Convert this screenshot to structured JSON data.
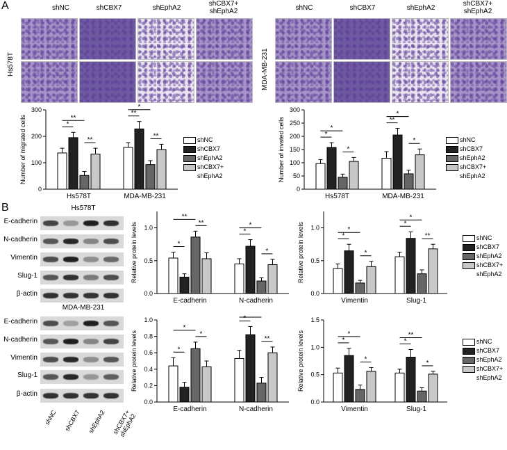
{
  "panel_a": {
    "letter": "A",
    "groups": [
      "shNC",
      "shCBX7",
      "shEphA2",
      "shCBX7+\nshEphA2"
    ],
    "cell_lines": [
      "Hs578T",
      "MDA-MB-231"
    ]
  },
  "panel_b": {
    "letter": "B",
    "blot_titles": [
      "Hs578T",
      "MDA-MB-231"
    ],
    "proteins": [
      "E-cadherin",
      "N-cadherin",
      "Vimentin",
      "Slug-1",
      "β-actin"
    ],
    "lanes": [
      "shNC",
      "shCBX7",
      "shEphA2",
      "shCBX7+\nshEphA2"
    ]
  },
  "legend": {
    "items": [
      {
        "label": "shNC",
        "color": "#ffffff"
      },
      {
        "label": "shCBX7",
        "color": "#222222"
      },
      {
        "label": "shEphA2",
        "color": "#666666"
      },
      {
        "label": "shCBX7+\nshEphA2",
        "color": "#c8c8c8"
      }
    ]
  },
  "chart_data": [
    {
      "type": "bar",
      "ylabel": "Number of migrated cells",
      "ylim": [
        0,
        300
      ],
      "yticks": [
        0,
        100,
        200,
        300
      ],
      "categories": [
        "Hs578T",
        "MDA-MB-231"
      ],
      "series": [
        {
          "name": "shNC",
          "values": [
            137,
            158
          ],
          "err": [
            18,
            18
          ]
        },
        {
          "name": "shCBX7",
          "values": [
            195,
            228
          ],
          "err": [
            20,
            28
          ]
        },
        {
          "name": "shEphA2",
          "values": [
            52,
            93
          ],
          "err": [
            15,
            15
          ]
        },
        {
          "name": "shCBX7+\nshEphA2",
          "values": [
            133,
            150
          ],
          "err": [
            22,
            20
          ]
        }
      ],
      "significance": [
        {
          "cat": 0,
          "from": 0,
          "to": 1,
          "label": "*"
        },
        {
          "cat": 0,
          "from": 0,
          "to": 2,
          "label": "**"
        },
        {
          "cat": 0,
          "from": 2,
          "to": 3,
          "label": "**"
        },
        {
          "cat": 1,
          "from": 0,
          "to": 1,
          "label": "**"
        },
        {
          "cat": 1,
          "from": 0,
          "to": 2,
          "label": "*"
        },
        {
          "cat": 1,
          "from": 2,
          "to": 3,
          "label": "**"
        }
      ]
    },
    {
      "type": "bar",
      "ylabel": "Number of invated cells",
      "ylim": [
        0,
        300
      ],
      "yticks": [
        0,
        50,
        100,
        150,
        200,
        250,
        300
      ],
      "categories": [
        "Hs578T",
        "MDA-MB-231"
      ],
      "series": [
        {
          "name": "shNC",
          "values": [
            97,
            117
          ],
          "err": [
            15,
            25
          ]
        },
        {
          "name": "shCBX7",
          "values": [
            158,
            205
          ],
          "err": [
            18,
            25
          ]
        },
        {
          "name": "shEphA2",
          "values": [
            45,
            58
          ],
          "err": [
            12,
            14
          ]
        },
        {
          "name": "shCBX7+\nshEphA2",
          "values": [
            105,
            130
          ],
          "err": [
            15,
            22
          ]
        }
      ],
      "significance": [
        {
          "cat": 0,
          "from": 0,
          "to": 1,
          "label": "*"
        },
        {
          "cat": 0,
          "from": 0,
          "to": 2,
          "label": "*"
        },
        {
          "cat": 0,
          "from": 2,
          "to": 3,
          "label": "*"
        },
        {
          "cat": 1,
          "from": 0,
          "to": 1,
          "label": "**"
        },
        {
          "cat": 1,
          "from": 0,
          "to": 2,
          "label": "*"
        },
        {
          "cat": 1,
          "from": 2,
          "to": 3,
          "label": "*"
        }
      ]
    },
    {
      "type": "bar",
      "ylabel": "Relative protein levels",
      "ylim": [
        0,
        1.25
      ],
      "yticks": [
        0.0,
        0.5,
        1.0
      ],
      "categories": [
        "E-cadherin",
        "N-cadherin"
      ],
      "series": [
        {
          "name": "shNC",
          "values": [
            0.54,
            0.45
          ],
          "err": [
            0.09,
            0.08
          ]
        },
        {
          "name": "shCBX7",
          "values": [
            0.25,
            0.72
          ],
          "err": [
            0.05,
            0.1
          ]
        },
        {
          "name": "shEphA2",
          "values": [
            0.86,
            0.19
          ],
          "err": [
            0.09,
            0.05
          ]
        },
        {
          "name": "shCBX7+\nshEphA2",
          "values": [
            0.53,
            0.44
          ],
          "err": [
            0.09,
            0.08
          ]
        }
      ],
      "significance": [
        {
          "cat": 0,
          "from": 0,
          "to": 1,
          "label": "*"
        },
        {
          "cat": 0,
          "from": 0,
          "to": 2,
          "label": "**"
        },
        {
          "cat": 0,
          "from": 2,
          "to": 3,
          "label": "**"
        },
        {
          "cat": 1,
          "from": 0,
          "to": 1,
          "label": "*"
        },
        {
          "cat": 1,
          "from": 0,
          "to": 2,
          "label": "*"
        },
        {
          "cat": 1,
          "from": 2,
          "to": 3,
          "label": "*"
        }
      ]
    },
    {
      "type": "bar",
      "ylabel": "Relative protein levels",
      "ylim": [
        0,
        1.25
      ],
      "yticks": [
        0.0,
        0.5,
        1.0
      ],
      "categories": [
        "Vimentin",
        "Slug-1"
      ],
      "series": [
        {
          "name": "shNC",
          "values": [
            0.38,
            0.56
          ],
          "err": [
            0.07,
            0.07
          ]
        },
        {
          "name": "shCBX7",
          "values": [
            0.65,
            0.84
          ],
          "err": [
            0.1,
            0.1
          ]
        },
        {
          "name": "shEphA2",
          "values": [
            0.16,
            0.3
          ],
          "err": [
            0.04,
            0.06
          ]
        },
        {
          "name": "shCBX7+\nshEphA2",
          "values": [
            0.41,
            0.68
          ],
          "err": [
            0.08,
            0.07
          ]
        }
      ],
      "significance": [
        {
          "cat": 0,
          "from": 0,
          "to": 1,
          "label": "*"
        },
        {
          "cat": 0,
          "from": 0,
          "to": 2,
          "label": "*"
        },
        {
          "cat": 0,
          "from": 2,
          "to": 3,
          "label": "*"
        },
        {
          "cat": 1,
          "from": 0,
          "to": 1,
          "label": "*"
        },
        {
          "cat": 1,
          "from": 0,
          "to": 2,
          "label": "*"
        },
        {
          "cat": 1,
          "from": 2,
          "to": 3,
          "label": "**"
        }
      ]
    },
    {
      "type": "bar",
      "ylabel": "Relative protein levels",
      "ylim": [
        0,
        1.0
      ],
      "yticks": [
        0.0,
        0.2,
        0.4,
        0.6,
        0.8,
        1.0
      ],
      "categories": [
        "E-cadherin",
        "N-cadherin"
      ],
      "series": [
        {
          "name": "shNC",
          "values": [
            0.44,
            0.53
          ],
          "err": [
            0.1,
            0.1
          ]
        },
        {
          "name": "shCBX7",
          "values": [
            0.18,
            0.82
          ],
          "err": [
            0.06,
            0.1
          ]
        },
        {
          "name": "shEphA2",
          "values": [
            0.65,
            0.23
          ],
          "err": [
            0.08,
            0.07
          ]
        },
        {
          "name": "shCBX7+\nshEphA2",
          "values": [
            0.43,
            0.6
          ],
          "err": [
            0.07,
            0.07
          ]
        }
      ],
      "significance": [
        {
          "cat": 0,
          "from": 0,
          "to": 1,
          "label": "*"
        },
        {
          "cat": 0,
          "from": 0,
          "to": 2,
          "label": "*"
        },
        {
          "cat": 0,
          "from": 2,
          "to": 3,
          "label": "*"
        },
        {
          "cat": 1,
          "from": 0,
          "to": 1,
          "label": "*"
        },
        {
          "cat": 1,
          "from": 0,
          "to": 2,
          "label": "*"
        },
        {
          "cat": 1,
          "from": 2,
          "to": 3,
          "label": "**"
        }
      ]
    },
    {
      "type": "bar",
      "ylabel": "Relative protein levels",
      "ylim": [
        0,
        1.5
      ],
      "yticks": [
        0.0,
        0.5,
        1.0,
        1.5
      ],
      "categories": [
        "Vimentin",
        "Slug-1"
      ],
      "series": [
        {
          "name": "shNC",
          "values": [
            0.53,
            0.53
          ],
          "err": [
            0.09,
            0.07
          ]
        },
        {
          "name": "shCBX7",
          "values": [
            0.85,
            0.82
          ],
          "err": [
            0.13,
            0.14
          ]
        },
        {
          "name": "shEphA2",
          "values": [
            0.23,
            0.2
          ],
          "err": [
            0.08,
            0.06
          ]
        },
        {
          "name": "shCBX7+\nshEphA2",
          "values": [
            0.56,
            0.51
          ],
          "err": [
            0.07,
            0.05
          ]
        }
      ],
      "significance": [
        {
          "cat": 0,
          "from": 0,
          "to": 1,
          "label": "*"
        },
        {
          "cat": 0,
          "from": 0,
          "to": 2,
          "label": "*"
        },
        {
          "cat": 0,
          "from": 2,
          "to": 3,
          "label": "*"
        },
        {
          "cat": 1,
          "from": 0,
          "to": 1,
          "label": "*"
        },
        {
          "cat": 1,
          "from": 0,
          "to": 2,
          "label": "**"
        },
        {
          "cat": 1,
          "from": 2,
          "to": 3,
          "label": "*"
        }
      ]
    }
  ]
}
